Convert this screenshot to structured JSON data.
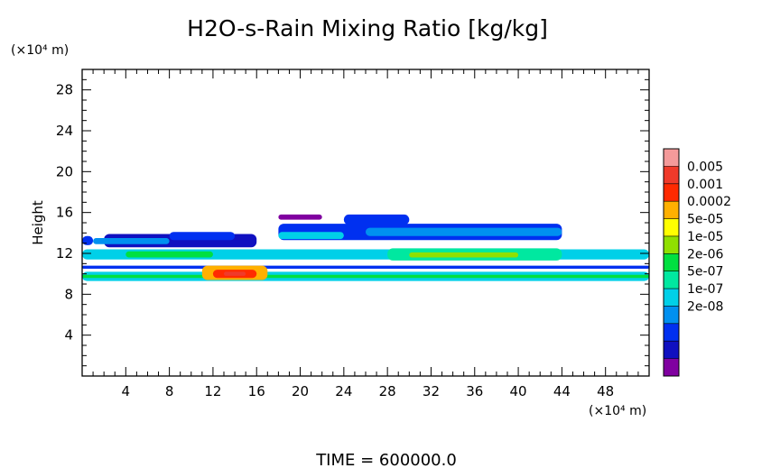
{
  "chart_data": {
    "type": "heatmap",
    "title": "H2O-s-Rain Mixing Ratio [kg/kg]",
    "ylabel": "Height",
    "y_unit": "(×10⁴ m)",
    "x_unit": "(×10⁴ m)",
    "footer": "TIME = 600000.0",
    "xlim": [
      0,
      52
    ],
    "ylim": [
      0,
      30
    ],
    "x_ticks": [
      4,
      8,
      12,
      16,
      20,
      24,
      28,
      32,
      36,
      40,
      44,
      48
    ],
    "y_ticks": [
      4,
      8,
      12,
      16,
      20,
      24,
      28
    ],
    "colorbar": {
      "labels": [
        "0.005",
        "0.001",
        "0.0002",
        "5e-05",
        "1e-05",
        "2e-06",
        "5e-07",
        "1e-07",
        "2e-08"
      ],
      "colors": [
        "#f49a9a",
        "#f03a2a",
        "#ff2a00",
        "#ffb000",
        "#ffff00",
        "#90e000",
        "#00e040",
        "#00e8a0",
        "#00d0e8",
        "#0090f0",
        "#0030f0",
        "#1010c0",
        "#8000a0"
      ]
    },
    "patches": [
      {
        "x": [
          2,
          16
        ],
        "y": [
          12.6,
          13.9
        ],
        "level": 1
      },
      {
        "x": [
          1,
          8
        ],
        "y": [
          12.9,
          13.5
        ],
        "level": 3
      },
      {
        "x": [
          0,
          1
        ],
        "y": [
          12.8,
          13.7
        ],
        "level": 2
      },
      {
        "x": [
          8,
          14
        ],
        "y": [
          13.3,
          14.1
        ],
        "level": 2
      },
      {
        "x": [
          18,
          22
        ],
        "y": [
          15.3,
          15.8
        ],
        "level": 0
      },
      {
        "x": [
          24,
          30
        ],
        "y": [
          14.8,
          15.8
        ],
        "level": 2
      },
      {
        "x": [
          18,
          44
        ],
        "y": [
          13.3,
          14.9
        ],
        "level": 2
      },
      {
        "x": [
          26,
          44
        ],
        "y": [
          13.7,
          14.5
        ],
        "level": 3
      },
      {
        "x": [
          18,
          24
        ],
        "y": [
          13.4,
          14.1
        ],
        "level": 4
      },
      {
        "x": [
          0,
          52
        ],
        "y": [
          11.4,
          12.4
        ],
        "level": 4
      },
      {
        "x": [
          4,
          12
        ],
        "y": [
          11.6,
          12.2
        ],
        "level": 6
      },
      {
        "x": [
          28,
          44
        ],
        "y": [
          11.3,
          12.5
        ],
        "level": 5
      },
      {
        "x": [
          30,
          40
        ],
        "y": [
          11.6,
          12.1
        ],
        "level": 7
      },
      {
        "x": [
          0,
          52
        ],
        "y": [
          10.5,
          10.8
        ],
        "level": 2
      },
      {
        "x": [
          0,
          52
        ],
        "y": [
          9.3,
          10.2
        ],
        "level": 4
      },
      {
        "x": [
          0,
          52
        ],
        "y": [
          9.6,
          9.9
        ],
        "level": 6
      },
      {
        "x": [
          11,
          17
        ],
        "y": [
          9.4,
          10.8
        ],
        "level": 9
      },
      {
        "x": [
          12,
          16
        ],
        "y": [
          9.6,
          10.4
        ],
        "level": 10
      },
      {
        "x": [
          13,
          15
        ],
        "y": [
          9.8,
          10.2
        ],
        "level": 11
      }
    ]
  }
}
